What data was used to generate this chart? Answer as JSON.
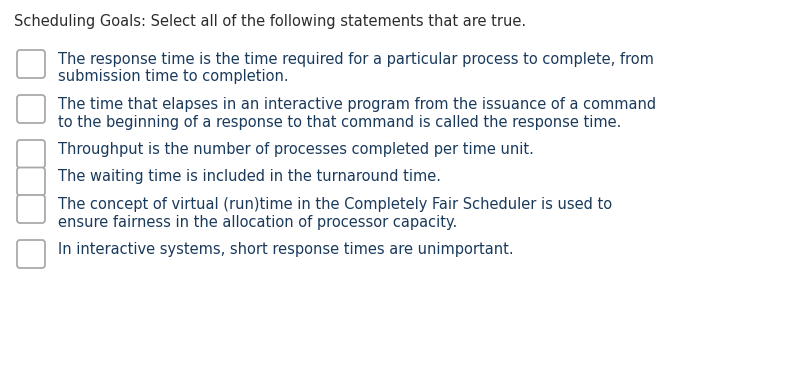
{
  "background_color": "#ffffff",
  "title": "Scheduling Goals: Select all of the following statements that are true.",
  "title_color": "#2c2c2c",
  "title_fontsize": 10.5,
  "text_color": "#1a3a5c",
  "text_fontsize": 10.5,
  "checkbox_color": "#ffffff",
  "checkbox_edge_color": "#aaaaaa",
  "items": [
    {
      "lines": [
        "The response time is the time required for a particular process to complete, from",
        "submission time to completion."
      ]
    },
    {
      "lines": [
        "The time that elapses in an interactive program from the issuance of a command",
        "to the beginning of a response to that command is called the response time."
      ]
    },
    {
      "lines": [
        "Throughput is the number of processes completed per time unit."
      ]
    },
    {
      "lines": [
        "The waiting time is included in the turnaround time."
      ]
    },
    {
      "lines": [
        "The concept of virtual (run)time in the Completely Fair Scheduler is used to",
        "ensure fairness in the allocation of processor capacity."
      ]
    },
    {
      "lines": [
        "In interactive systems, short response times are unimportant."
      ]
    }
  ]
}
